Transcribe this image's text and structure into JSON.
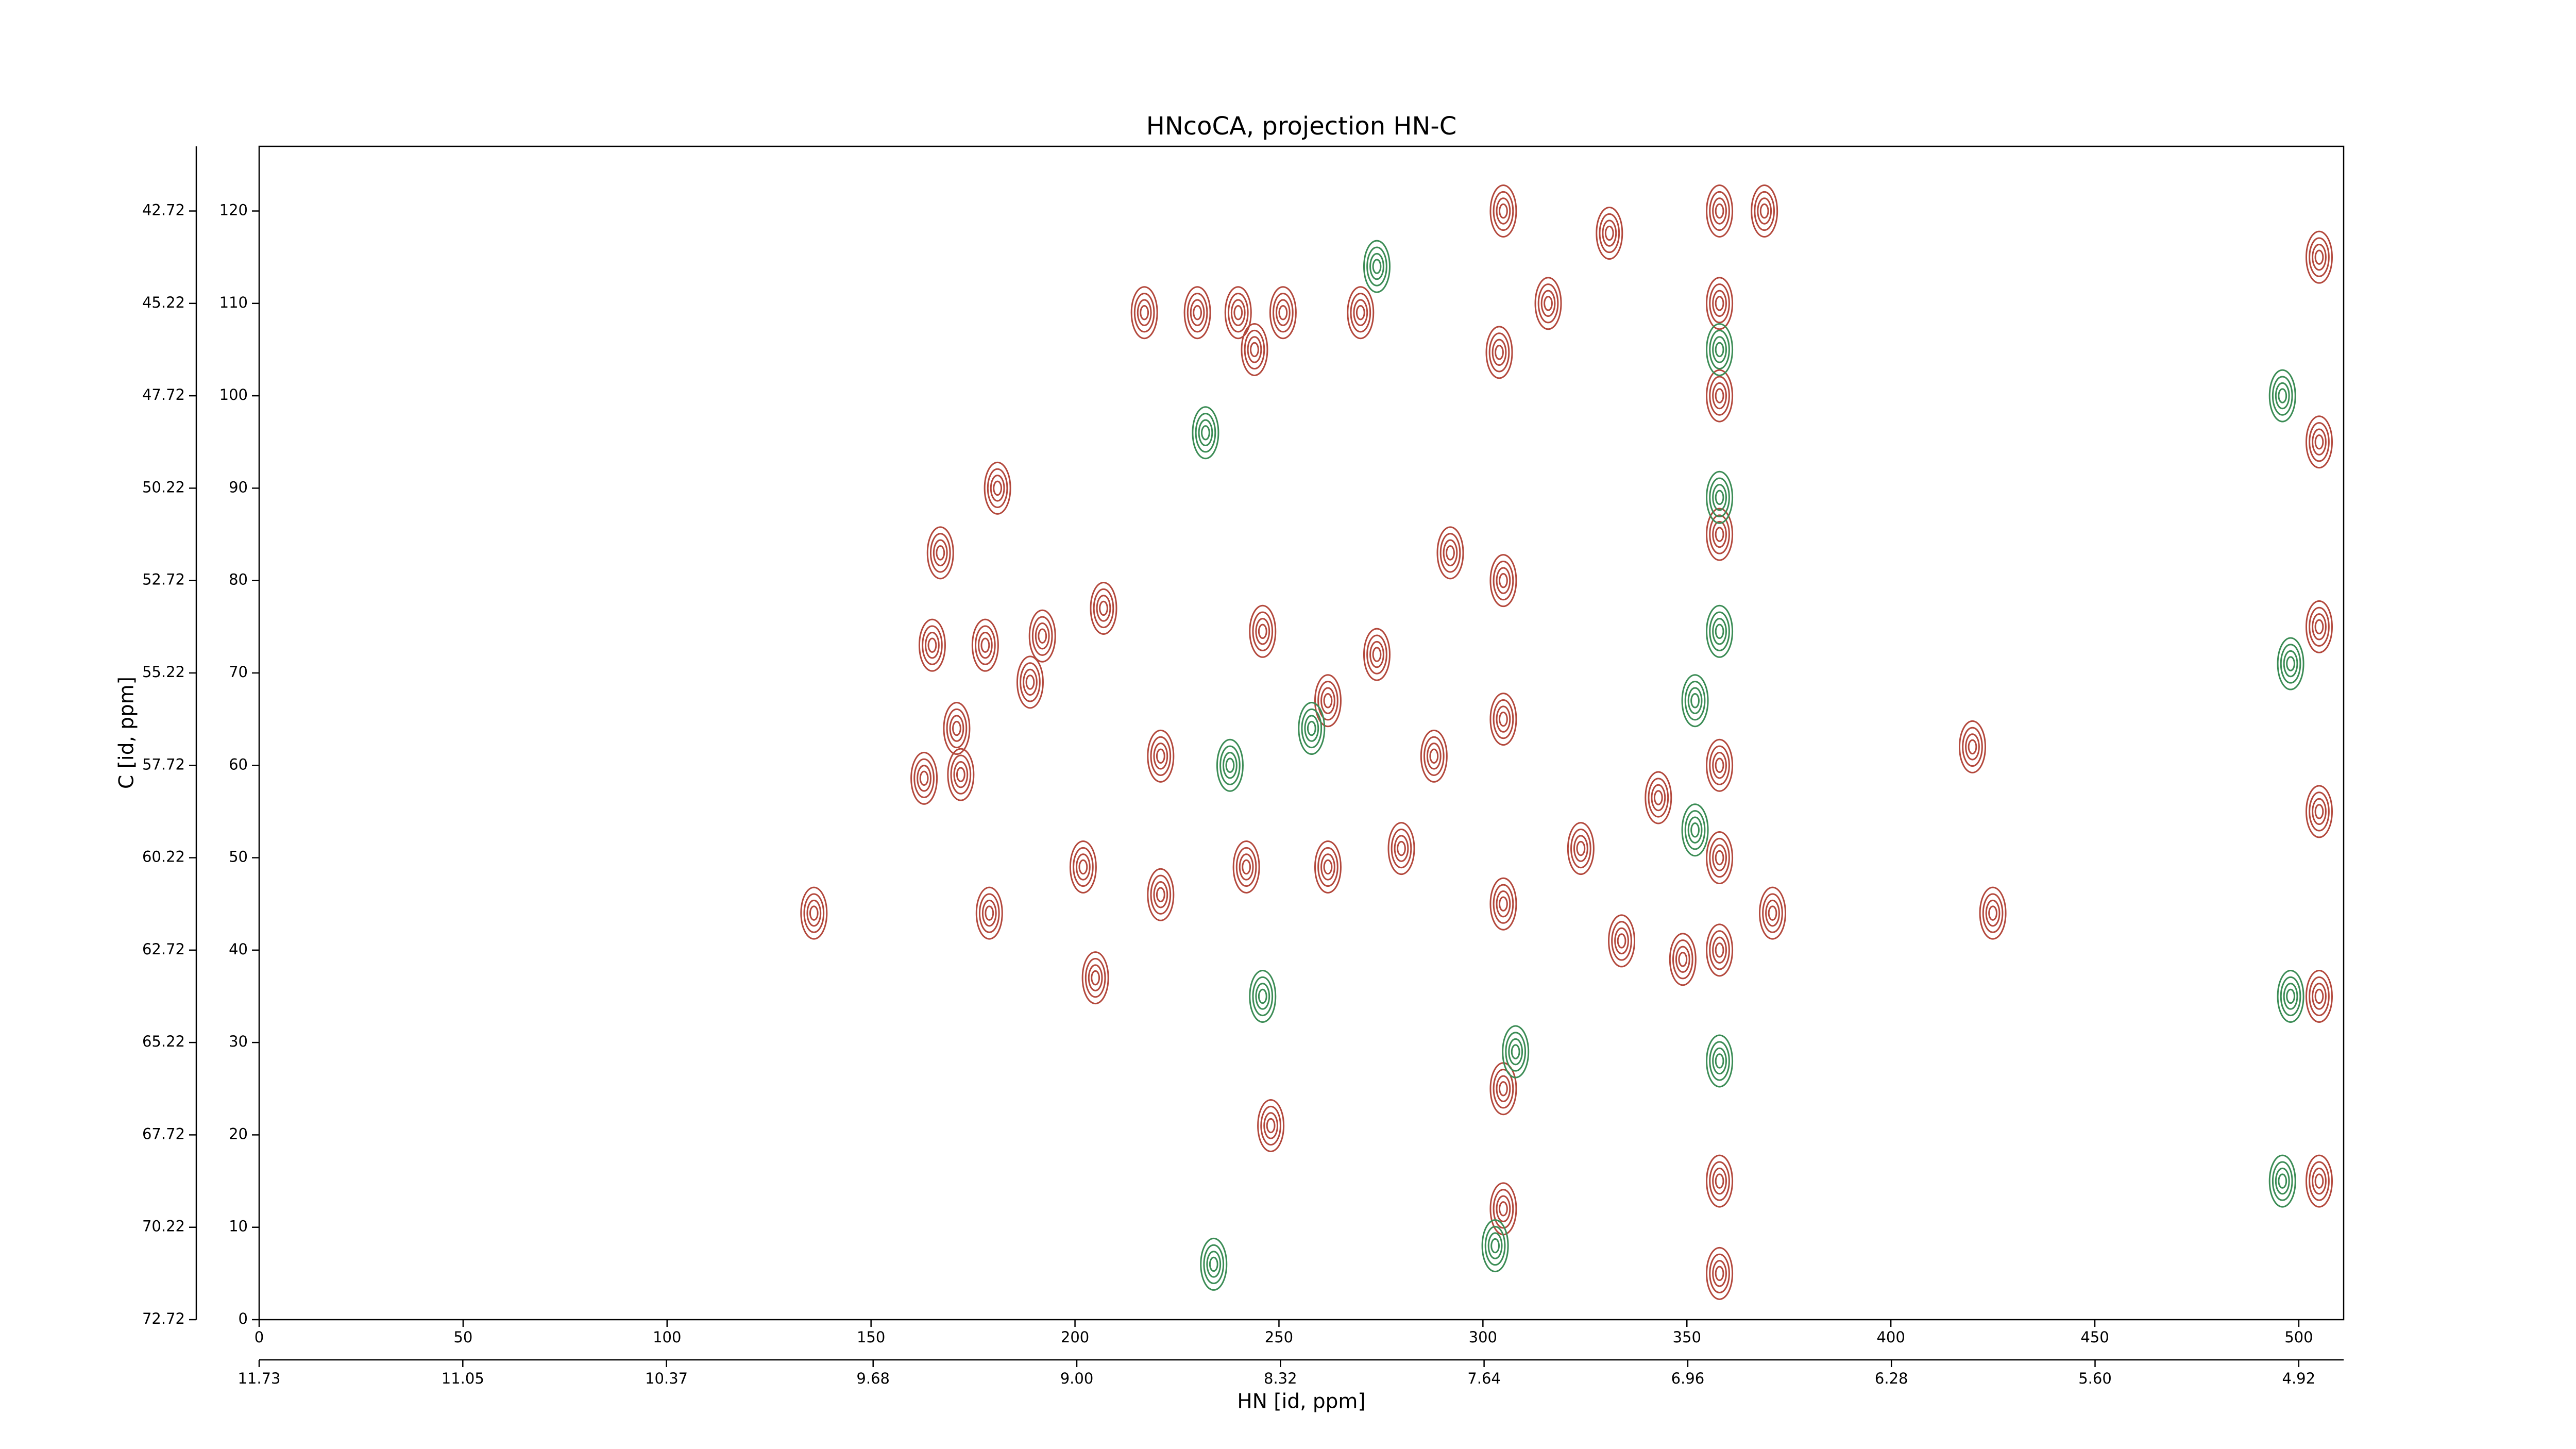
{
  "chart_data": {
    "type": "contour",
    "title": "HNcoCA, projection HN-C",
    "xlabel": "HN [id, ppm]",
    "ylabel": "C [id, ppm]",
    "xlim": [
      0,
      511
    ],
    "xticks": [
      0,
      50,
      100,
      150,
      200,
      250,
      300,
      350,
      400,
      450,
      500
    ],
    "ylim": [
      0,
      127
    ],
    "yticks": [
      0,
      10,
      20,
      30,
      40,
      50,
      60,
      70,
      80,
      90,
      100,
      110,
      120
    ],
    "x2lim": [
      11.73,
      4.77
    ],
    "x2ticks": [
      11.73,
      11.05,
      10.37,
      9.68,
      {
        "value": 9,
        "label": "9.00"
      },
      8.32,
      7.64,
      6.96,
      6.28,
      {
        "value": 5.6,
        "label": "5.60"
      },
      4.92
    ],
    "y2lim": [
      72.72,
      40.97
    ],
    "y2ticks": [
      72.72,
      70.22,
      67.72,
      65.22,
      62.72,
      60.22,
      57.72,
      55.22,
      52.72,
      50.22,
      47.72,
      45.22,
      42.72
    ],
    "series": [
      {
        "color": "#b3483c",
        "x": [
          331,
          369,
          167,
          181,
          165,
          178,
          192,
          189,
          171,
          163,
          172,
          136,
          179,
          202,
          205,
          207,
          217,
          230,
          240,
          251,
          270,
          244,
          304,
          316,
          292,
          288,
          280,
          324,
          334,
          343,
          349,
          371,
          420,
          425,
          248,
          221,
          246,
          262,
          242,
          262,
          274,
          221,
          358,
          358,
          358,
          358,
          358,
          358,
          358,
          358,
          358,
          305,
          305,
          305,
          305,
          305,
          305,
          505,
          505,
          505,
          505,
          505,
          505
        ],
        "y": [
          117.6,
          120,
          83,
          90,
          73,
          73,
          74,
          69,
          64,
          58.6,
          59,
          44,
          44,
          49,
          37,
          77,
          109,
          109,
          109,
          109,
          109,
          105,
          104.7,
          110,
          83,
          61,
          51,
          51,
          41,
          56.5,
          39,
          44,
          62,
          44,
          21,
          61,
          74.5,
          67,
          49,
          49,
          72,
          46,
          120,
          110,
          100,
          85,
          60,
          50,
          40,
          15,
          5,
          120,
          80,
          65,
          45,
          25,
          12,
          115,
          95,
          75,
          55,
          35,
          15
        ]
      },
      {
        "color": "#3b8c55",
        "x": [
          232,
          274,
          308,
          303,
          358,
          358,
          358,
          358,
          352,
          352,
          238,
          246,
          258,
          498,
          498,
          234,
          496,
          496
        ],
        "y": [
          96,
          114,
          29,
          8,
          28,
          74.5,
          89,
          105,
          67,
          53,
          60,
          35,
          64,
          71,
          35,
          6,
          100,
          15
        ]
      }
    ]
  }
}
